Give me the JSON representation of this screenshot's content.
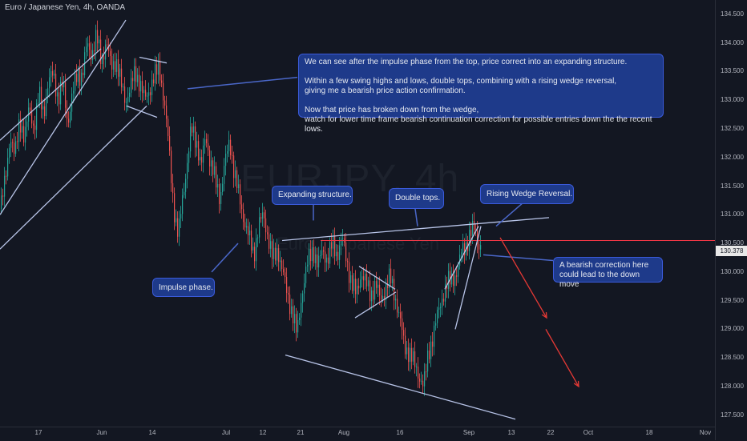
{
  "chart_data": {
    "type": "candlestick",
    "title": "Euro / Japanese Yen, 4h, OANDA",
    "watermark": {
      "symbol": "EURJPY, 4h",
      "name": "Euro / Japanese Yen"
    },
    "ylim": [
      127.3,
      134.75
    ],
    "y_ticks": [
      "127.500",
      "128.000",
      "128.500",
      "129.000",
      "129.500",
      "130.000",
      "130.500",
      "131.000",
      "131.500",
      "132.000",
      "132.500",
      "133.000",
      "133.500",
      "134.000",
      "134.500"
    ],
    "x_ticks": [
      "17",
      "Jun",
      "14",
      "Jul",
      "12",
      "21",
      "Aug",
      "16",
      "Sep",
      "13",
      "22",
      "Oct",
      "18",
      "Nov"
    ],
    "current_price": "130.378",
    "resistance_level": 130.55,
    "colors": {
      "up": "#26a69a",
      "down": "#ef5350",
      "line": "#b8c4e8",
      "resistance": "#f23645",
      "projection": "#e53935",
      "note_bg": "#1e3a8a"
    },
    "price_path": [
      [
        0,
        131.1
      ],
      [
        6,
        131.6
      ],
      [
        12,
        132.4
      ],
      [
        18,
        132.0
      ],
      [
        24,
        132.7
      ],
      [
        30,
        132.3
      ],
      [
        36,
        132.9
      ],
      [
        42,
        132.5
      ],
      [
        48,
        133.1
      ],
      [
        54,
        132.8
      ],
      [
        60,
        133.3
      ],
      [
        66,
        133.5
      ],
      [
        72,
        133.0
      ],
      [
        78,
        133.3
      ],
      [
        84,
        132.6
      ],
      [
        90,
        133.1
      ],
      [
        96,
        133.5
      ],
      [
        102,
        133.4
      ],
      [
        108,
        134.0
      ],
      [
        114,
        133.8
      ],
      [
        120,
        134.1
      ],
      [
        126,
        133.7
      ],
      [
        132,
        134.0
      ],
      [
        138,
        133.6
      ],
      [
        144,
        133.7
      ],
      [
        150,
        133.3
      ],
      [
        156,
        133.0
      ],
      [
        162,
        133.2
      ],
      [
        168,
        133.5
      ],
      [
        174,
        133.3
      ],
      [
        180,
        133.0
      ],
      [
        186,
        133.2
      ],
      [
        192,
        133.4
      ],
      [
        198,
        133.6
      ],
      [
        204,
        133.0
      ],
      [
        210,
        132.2
      ],
      [
        214,
        131.5
      ],
      [
        218,
        130.9
      ],
      [
        222,
        130.6
      ],
      [
        226,
        131.2
      ],
      [
        230,
        131.6
      ],
      [
        234,
        132.0
      ],
      [
        238,
        132.5
      ],
      [
        242,
        132.4
      ],
      [
        246,
        132.2
      ],
      [
        250,
        131.8
      ],
      [
        256,
        132.4
      ],
      [
        262,
        131.9
      ],
      [
        268,
        131.6
      ],
      [
        274,
        131.3
      ],
      [
        280,
        131.9
      ],
      [
        286,
        132.3
      ],
      [
        292,
        131.7
      ],
      [
        298,
        131.3
      ],
      [
        304,
        130.9
      ],
      [
        310,
        130.6
      ],
      [
        316,
        130.3
      ],
      [
        322,
        130.8
      ],
      [
        328,
        131.0
      ],
      [
        334,
        130.6
      ],
      [
        340,
        130.2
      ],
      [
        346,
        130.4
      ],
      [
        352,
        130.0
      ],
      [
        358,
        129.6
      ],
      [
        364,
        129.3
      ],
      [
        370,
        128.9
      ],
      [
        374,
        129.4
      ],
      [
        378,
        129.8
      ],
      [
        384,
        130.2
      ],
      [
        390,
        130.4
      ],
      [
        396,
        130.1
      ],
      [
        402,
        130.4
      ],
      [
        408,
        130.2
      ],
      [
        414,
        130.5
      ],
      [
        420,
        130.3
      ],
      [
        426,
        130.6
      ],
      [
        432,
        130.2
      ],
      [
        438,
        129.8
      ],
      [
        444,
        129.6
      ],
      [
        450,
        130.0
      ],
      [
        456,
        129.8
      ],
      [
        462,
        129.6
      ],
      [
        468,
        129.8
      ],
      [
        474,
        129.5
      ],
      [
        480,
        129.7
      ],
      [
        486,
        129.9
      ],
      [
        492,
        129.6
      ],
      [
        498,
        129.2
      ],
      [
        504,
        128.7
      ],
      [
        510,
        128.6
      ],
      [
        516,
        128.4
      ],
      [
        522,
        128.2
      ],
      [
        528,
        128.0
      ],
      [
        534,
        128.6
      ],
      [
        540,
        128.9
      ],
      [
        546,
        129.3
      ],
      [
        552,
        129.6
      ],
      [
        558,
        129.8
      ],
      [
        564,
        129.9
      ],
      [
        570,
        130.0
      ],
      [
        576,
        130.4
      ],
      [
        582,
        130.5
      ],
      [
        588,
        130.7
      ],
      [
        592,
        130.8
      ],
      [
        596,
        130.5
      ],
      [
        600,
        130.4
      ]
    ],
    "trendlines": [
      {
        "from": [
          0,
          131.0
        ],
        "to": [
          157,
          134.4
        ],
        "color": "#b8c4e8"
      },
      {
        "from": [
          0,
          130.4
        ],
        "to": [
          183,
          132.9
        ],
        "color": "#b8c4e8"
      },
      {
        "from": [
          0,
          132.3
        ],
        "to": [
          126,
          133.9
        ],
        "color": "#b8c4e8"
      },
      {
        "from": [
          174,
          133.75
        ],
        "to": [
          208,
          133.65
        ],
        "color": "#b8c4e8"
      },
      {
        "from": [
          158,
          132.9
        ],
        "to": [
          196,
          132.7
        ],
        "color": "#b8c4e8"
      },
      {
        "from": [
          352,
          130.55
        ],
        "to": [
          685,
          130.95
        ],
        "color": "#b8c4e8"
      },
      {
        "from": [
          356,
          128.55
        ],
        "to": [
          643,
          127.43
        ],
        "color": "#b8c4e8"
      },
      {
        "from": [
          448,
          130.1
        ],
        "to": [
          493,
          129.7
        ],
        "color": "#b8c4e8"
      },
      {
        "from": [
          443,
          129.2
        ],
        "to": [
          494,
          129.65
        ],
        "color": "#b8c4e8"
      },
      {
        "from": [
          555,
          129.7
        ],
        "to": [
          597,
          130.8
        ],
        "color": "#b8c4e8"
      },
      {
        "from": [
          568,
          129.0
        ],
        "to": [
          600,
          130.8
        ],
        "color": "#b8c4e8"
      }
    ],
    "callout_lines": [
      {
        "from": [
          234,
          133.2
        ],
        "to": [
          371,
          133.4
        ]
      },
      {
        "from": [
          391,
          130.9
        ],
        "to": [
          391,
          131.3
        ]
      },
      {
        "from": [
          521,
          130.8
        ],
        "to": [
          516,
          131.3
        ]
      },
      {
        "from": [
          619,
          130.8
        ],
        "to": [
          660,
          131.3
        ]
      },
      {
        "from": [
          264,
          130.0
        ],
        "to": [
          297,
          130.5
        ]
      },
      {
        "from": [
          603,
          130.3
        ],
        "to": [
          690,
          130.2
        ]
      }
    ],
    "projection_arrows": [
      {
        "from": [
          624,
          130.6
        ],
        "to": [
          682,
          129.2
        ]
      },
      {
        "from": [
          681,
          129.0
        ],
        "to": [
          722,
          128.0
        ]
      }
    ],
    "annotations": {
      "main": "We can see after the impulse phase from the top, price correct into an expanding structure.\n\nWithin a few swing highs and lows, double tops, combining with a rising wedge reversal,\ngiving me a bearish price action confirmation.\n\nNow that price has broken down from the wedge,\nwatch for lower time frame bearish continuation correction for possible entries down the the recent lows.",
      "expanding": "Expanding structure.",
      "double_tops": "Double tops.",
      "rising_wedge": "Rising Wedge Reversal.",
      "impulse": "Impulse phase.",
      "bearish": "A bearish correction here\ncould lead to the down move"
    }
  }
}
